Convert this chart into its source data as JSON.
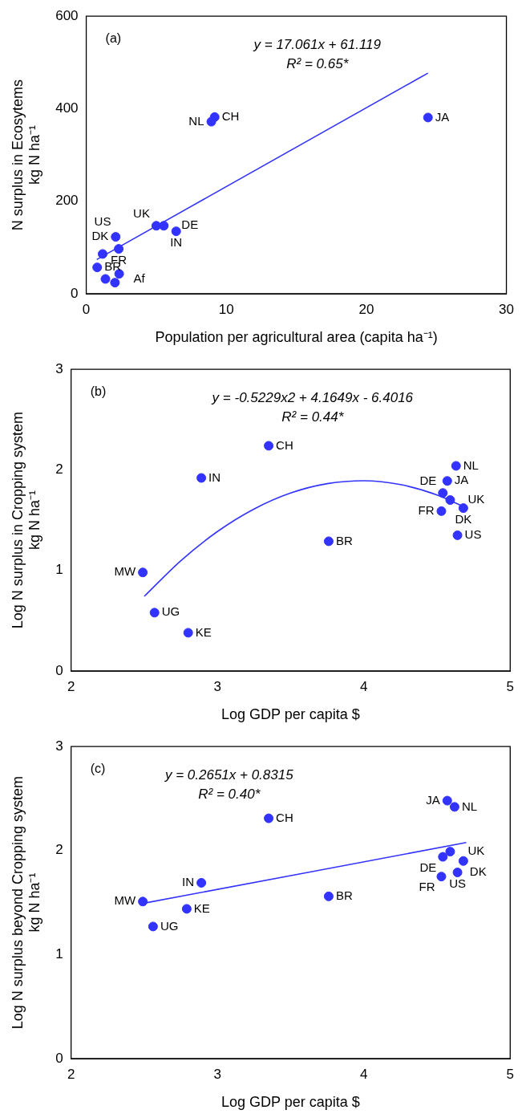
{
  "chart_data": [
    {
      "type": "scatter",
      "xlabel": "Population per agricultural area (capita ha⁻¹)",
      "ylabel": "N surplus in Ecosytems\nkg N ha⁻¹",
      "xlim": [
        0,
        30
      ],
      "xticks": [
        0,
        10,
        20,
        30
      ],
      "ylim": [
        0,
        600
      ],
      "yticks": [
        0,
        200,
        400,
        600
      ],
      "grid": false,
      "legend": false,
      "series": [
        {
          "marker": "circle",
          "color": "#3333ff",
          "x": [
            9.17,
            8.93,
            24.4,
            5.0,
            5.54,
            6.42,
            2.1,
            2.32,
            1.17,
            0.78,
            1.37,
            2.35,
            2.05
          ],
          "values": [
            382,
            372,
            381,
            147,
            147,
            135,
            123,
            97,
            86,
            57,
            32,
            43,
            24
          ]
        },
        {
          "type": "line",
          "marker": "none",
          "color": "#3333ff",
          "x": [
            0.75,
            24.4
          ],
          "values": [
            74,
            477
          ]
        }
      ],
      "annotations": [
        "(a)",
        "y = 17.061x + 61.119",
        "R² = 0.65*",
        {
          "text": "CH",
          "x": 9.17,
          "y": 382
        },
        {
          "text": "NL",
          "x": 8.93,
          "y": 372
        },
        {
          "text": "JA",
          "x": 24.4,
          "y": 381
        },
        {
          "text": "UK",
          "x": 5.0,
          "y": 147
        },
        {
          "text": "DE",
          "x": 5.54,
          "y": 147
        },
        {
          "text": "IN",
          "x": 6.42,
          "y": 135
        },
        {
          "text": "DK",
          "x": 2.1,
          "y": 123
        },
        {
          "text": "FR",
          "x": 2.32,
          "y": 97
        },
        {
          "text": "US",
          "x": 1.17,
          "y": 86
        },
        {
          "text": "BR",
          "x": 0.78,
          "y": 57
        },
        {
          "text": "Af",
          "x": 1.37,
          "y": 32
        }
      ]
    },
    {
      "type": "scatter",
      "xlabel": "Log GDP per capita $",
      "ylabel": "Log N surplus in Cropping system\nkg N ha⁻¹",
      "xlim": [
        2,
        5
      ],
      "xticks": [
        2,
        3,
        4,
        5
      ],
      "ylim": [
        0,
        3
      ],
      "yticks": [
        0,
        1,
        2,
        3
      ],
      "grid": false,
      "legend": false,
      "series": [
        {
          "marker": "circle",
          "color": "#3333ff",
          "x": [
            3.35,
            2.89,
            4.63,
            4.57,
            4.54,
            4.59,
            4.53,
            4.68,
            4.64,
            3.76,
            2.49,
            2.57,
            2.8
          ],
          "values": [
            2.24,
            1.92,
            2.04,
            1.89,
            1.77,
            1.7,
            1.59,
            1.62,
            1.35,
            1.29,
            0.98,
            0.58,
            0.38
          ]
        },
        {
          "type": "line",
          "marker": "none",
          "color": "#3333ff",
          "x": [
            2.5,
            2.75,
            3,
            3.25,
            3.5,
            3.75,
            4,
            4.25,
            4.5,
            4.7
          ],
          "values": [
            0.742,
            1.097,
            1.387,
            1.611,
            1.77,
            1.863,
            1.892,
            1.854,
            1.751,
            1.622
          ]
        }
      ],
      "annotations": [
        "(b)",
        "y = -0.5229x2 + 4.1649x - 6.4016",
        "R² = 0.44*",
        {
          "text": "CH",
          "x": 3.35,
          "y": 2.24
        },
        {
          "text": "IN",
          "x": 2.89,
          "y": 1.92
        },
        {
          "text": "NL",
          "x": 4.63,
          "y": 2.04
        },
        {
          "text": "JA",
          "x": 4.57,
          "y": 1.89
        },
        {
          "text": "DE",
          "x": 4.54,
          "y": 1.77
        },
        {
          "text": "UK",
          "x": 4.59,
          "y": 1.7
        },
        {
          "text": "FR",
          "x": 4.53,
          "y": 1.59
        },
        {
          "text": "DK",
          "x": 4.68,
          "y": 1.62
        },
        {
          "text": "US",
          "x": 4.64,
          "y": 1.35
        },
        {
          "text": "BR",
          "x": 3.76,
          "y": 1.29
        },
        {
          "text": "MW",
          "x": 2.49,
          "y": 0.98
        },
        {
          "text": "UG",
          "x": 2.57,
          "y": 0.58
        },
        {
          "text": "KE",
          "x": 2.8,
          "y": 0.38
        }
      ]
    },
    {
      "type": "scatter",
      "xlabel": "Log GDP per capita $",
      "ylabel": "Log N surplus beyond Cropping system\nkg N ha⁻¹",
      "xlim": [
        2,
        5
      ],
      "xticks": [
        2,
        3,
        4,
        5
      ],
      "ylim": [
        0,
        3
      ],
      "yticks": [
        0,
        1,
        2,
        3
      ],
      "grid": false,
      "legend": false,
      "series": [
        {
          "marker": "circle",
          "color": "#3333ff",
          "x": [
            3.35,
            4.57,
            4.62,
            4.59,
            4.54,
            4.68,
            4.64,
            4.53,
            2.89,
            3.76,
            2.49,
            2.79,
            2.56
          ],
          "values": [
            2.31,
            2.48,
            2.42,
            1.99,
            1.94,
            1.9,
            1.79,
            1.75,
            1.69,
            1.56,
            1.51,
            1.44,
            1.27
          ]
        },
        {
          "type": "line",
          "marker": "none",
          "color": "#3333ff",
          "x": [
            2.49,
            4.7
          ],
          "values": [
            1.492,
            2.077
          ]
        }
      ],
      "annotations": [
        "(c)",
        "y = 0.2651x + 0.8315",
        "R² = 0.40*",
        {
          "text": "CH",
          "x": 3.35,
          "y": 2.31
        },
        {
          "text": "JA",
          "x": 4.57,
          "y": 2.48
        },
        {
          "text": "NL",
          "x": 4.62,
          "y": 2.42
        },
        {
          "text": "UK",
          "x": 4.59,
          "y": 1.99
        },
        {
          "text": "DE",
          "x": 4.54,
          "y": 1.94
        },
        {
          "text": "DK",
          "x": 4.68,
          "y": 1.9
        },
        {
          "text": "US",
          "x": 4.64,
          "y": 1.79
        },
        {
          "text": "FR",
          "x": 4.53,
          "y": 1.75
        },
        {
          "text": "IN",
          "x": 2.89,
          "y": 1.69
        },
        {
          "text": "BR",
          "x": 3.76,
          "y": 1.56
        },
        {
          "text": "MW",
          "x": 2.49,
          "y": 1.51
        },
        {
          "text": "KE",
          "x": 2.79,
          "y": 1.44
        },
        {
          "text": "UG",
          "x": 2.56,
          "y": 1.27
        }
      ]
    }
  ]
}
